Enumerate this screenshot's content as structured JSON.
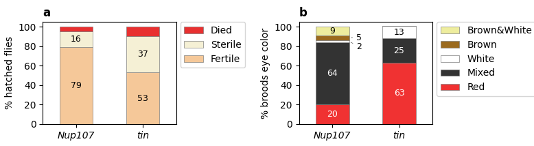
{
  "chart_data": [
    {
      "type": "bar",
      "stacked": true,
      "title": "a",
      "categories": [
        "Nup107",
        "tin"
      ],
      "y_label": "% hatched flies",
      "ylim": [
        0,
        105
      ],
      "yticks": [
        0,
        20,
        40,
        60,
        80,
        100
      ],
      "legend": "upper left",
      "series": [
        {
          "name": "Fertile",
          "color": "#F5C899",
          "values": [
            79,
            53
          ],
          "data_labels": true
        },
        {
          "name": "Sterile",
          "color": "#F5F0D5",
          "values": [
            16,
            37
          ],
          "data_labels": true
        },
        {
          "name": "Died",
          "color": "#E83030",
          "values": [
            5,
            10
          ],
          "data_labels": false
        }
      ]
    },
    {
      "type": "bar",
      "stacked": true,
      "title": "b",
      "categories": [
        "Nup107",
        "tin"
      ],
      "y_label": "% broods eye color",
      "ylim": [
        0,
        105
      ],
      "yticks": [
        0,
        20,
        40,
        60,
        80,
        100
      ],
      "legend": "upper left",
      "series": [
        {
          "name": "Red",
          "color": "#F03232",
          "values": [
            20,
            63
          ],
          "data_labels": true
        },
        {
          "name": "Mixed",
          "color": "#333333",
          "values": [
            64,
            25
          ],
          "data_labels": true
        },
        {
          "name": "White",
          "color": "#FFFFFF",
          "values": [
            2,
            13
          ],
          "data_labels": true
        },
        {
          "name": "Brown",
          "color": "#9B6A1E",
          "values": [
            5,
            0
          ],
          "data_labels": true
        },
        {
          "name": "Brown&White",
          "color": "#EEED9E",
          "values": [
            9,
            0
          ],
          "data_labels": true
        }
      ]
    }
  ]
}
